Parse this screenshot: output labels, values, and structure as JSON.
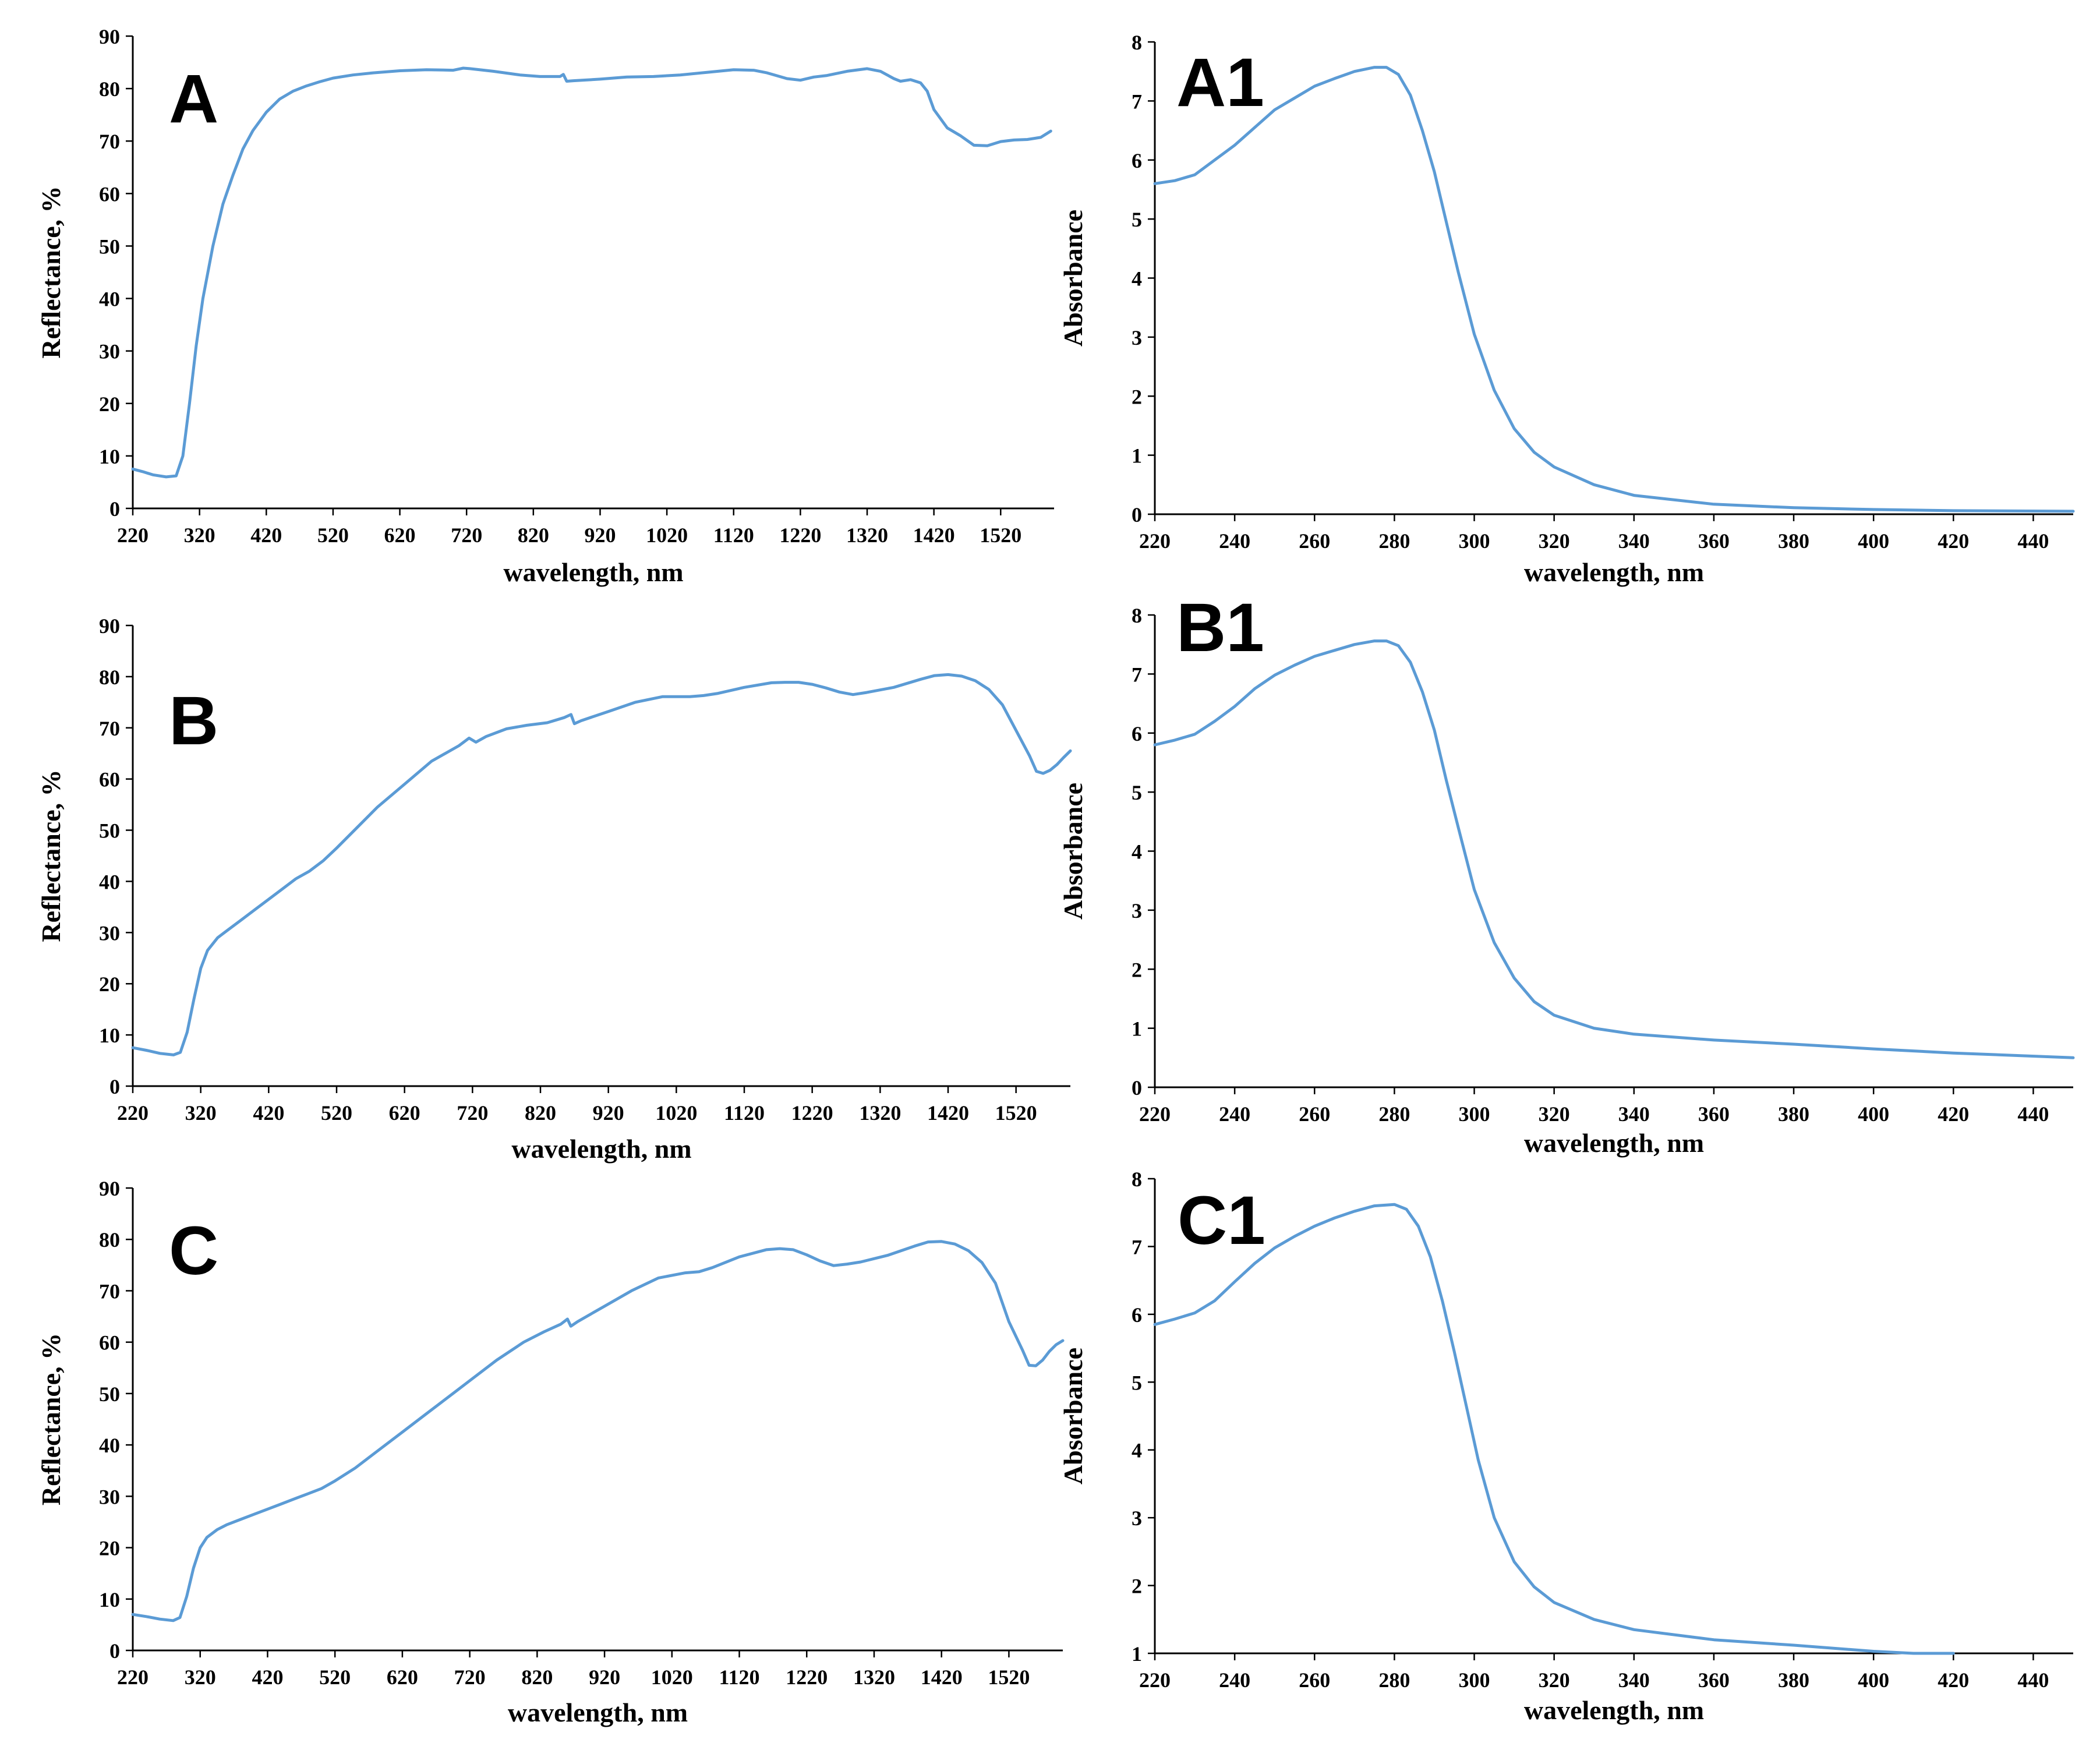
{
  "figure": {
    "line_color": "#5b9bd5"
  },
  "chart_data": [
    {
      "panel": "A",
      "type": "line",
      "xlabel": "wavelength, nm",
      "ylabel": "Reflectance, %",
      "xlim": [
        220,
        1600
      ],
      "ylim": [
        0,
        90
      ],
      "xticks": [
        220,
        320,
        420,
        520,
        620,
        720,
        820,
        920,
        1020,
        1120,
        1220,
        1320,
        1420,
        1520
      ],
      "yticks": [
        0,
        10,
        20,
        30,
        40,
        50,
        60,
        70,
        80,
        90
      ],
      "grid": false,
      "series": [
        {
          "x": [
            220,
            235,
            250,
            270,
            285,
            295,
            305,
            315,
            325,
            340,
            355,
            370,
            385,
            400,
            420,
            440,
            460,
            480,
            500,
            520,
            550,
            580,
            620,
            660,
            700,
            715,
            725,
            760,
            800,
            830,
            860,
            865,
            870,
            880,
            920,
            960,
            1000,
            1040,
            1080,
            1120,
            1150,
            1170,
            1200,
            1220,
            1240,
            1260,
            1290,
            1320,
            1340,
            1360,
            1370,
            1385,
            1400,
            1410,
            1420,
            1440,
            1460,
            1480,
            1500,
            1520,
            1540,
            1560,
            1580,
            1595
          ],
          "y": [
            7.5,
            7,
            6.4,
            6,
            6.2,
            10,
            20,
            31,
            40,
            50,
            58,
            63.5,
            68.5,
            72,
            75.5,
            78,
            79.5,
            80.5,
            81.3,
            82,
            82.6,
            83,
            83.4,
            83.6,
            83.5,
            83.9,
            83.8,
            83.3,
            82.6,
            82.3,
            82.3,
            82.7,
            81.4,
            81.5,
            81.8,
            82.2,
            82.3,
            82.6,
            83.1,
            83.6,
            83.5,
            83,
            81.9,
            81.6,
            82.2,
            82.5,
            83.3,
            83.8,
            83.3,
            81.9,
            81.4,
            81.7,
            81.1,
            79.5,
            76,
            72.5,
            71,
            69.2,
            69.1,
            69.9,
            70.2,
            70.3,
            70.7,
            71.9
          ]
        }
      ]
    },
    {
      "panel": "A1",
      "type": "line",
      "xlabel": "wavelength, nm",
      "ylabel": "Absorbance",
      "xlim": [
        220,
        450
      ],
      "ylim": [
        0,
        8
      ],
      "xticks": [
        220,
        240,
        260,
        280,
        300,
        320,
        340,
        360,
        380,
        400,
        420,
        440
      ],
      "yticks": [
        0,
        1,
        2,
        3,
        4,
        5,
        6,
        7,
        8
      ],
      "grid": false,
      "series": [
        {
          "x": [
            220,
            225,
            230,
            235,
            240,
            245,
            250,
            255,
            260,
            265,
            270,
            275,
            278,
            281,
            284,
            287,
            290,
            293,
            296,
            300,
            305,
            310,
            315,
            320,
            330,
            340,
            360,
            380,
            400,
            420,
            450
          ],
          "y": [
            5.6,
            5.65,
            5.75,
            6.0,
            6.25,
            6.55,
            6.85,
            7.05,
            7.25,
            7.38,
            7.5,
            7.57,
            7.57,
            7.45,
            7.1,
            6.5,
            5.8,
            4.95,
            4.1,
            3.05,
            2.1,
            1.45,
            1.05,
            0.8,
            0.5,
            0.32,
            0.17,
            0.11,
            0.08,
            0.06,
            0.05
          ]
        }
      ]
    },
    {
      "panel": "B",
      "type": "line",
      "xlabel": "wavelength, nm",
      "ylabel": "Reflectance, %",
      "xlim": [
        220,
        1600
      ],
      "ylim": [
        0,
        90
      ],
      "xticks": [
        220,
        320,
        420,
        520,
        620,
        720,
        820,
        920,
        1020,
        1120,
        1220,
        1320,
        1420,
        1520
      ],
      "yticks": [
        0,
        10,
        20,
        30,
        40,
        50,
        60,
        70,
        80,
        90
      ],
      "grid": false,
      "series": [
        {
          "x": [
            220,
            240,
            260,
            280,
            290,
            300,
            310,
            320,
            330,
            345,
            360,
            380,
            400,
            420,
            440,
            460,
            480,
            500,
            520,
            550,
            580,
            620,
            660,
            700,
            715,
            725,
            740,
            770,
            800,
            830,
            855,
            865,
            870,
            880,
            920,
            960,
            1000,
            1040,
            1060,
            1080,
            1120,
            1160,
            1180,
            1200,
            1220,
            1240,
            1260,
            1280,
            1300,
            1340,
            1380,
            1400,
            1420,
            1440,
            1460,
            1480,
            1500,
            1520,
            1540,
            1550,
            1560,
            1570,
            1580,
            1590,
            1600
          ],
          "y": [
            7.5,
            7,
            6.4,
            6.1,
            6.6,
            10.5,
            17,
            23,
            26.5,
            29,
            30.5,
            32.5,
            34.5,
            36.5,
            38.5,
            40.5,
            42,
            44,
            46.5,
            50.5,
            54.5,
            59,
            63.5,
            66.5,
            68,
            67.2,
            68.3,
            69.8,
            70.5,
            71,
            72,
            72.6,
            70.8,
            71.4,
            73.2,
            75,
            76.1,
            76.1,
            76.3,
            76.7,
            77.9,
            78.8,
            78.9,
            78.9,
            78.5,
            77.8,
            77,
            76.5,
            76.9,
            77.9,
            79.5,
            80.2,
            80.4,
            80.1,
            79.2,
            77.5,
            74.5,
            69.5,
            64.5,
            61.5,
            61.1,
            61.7,
            62.8,
            64.2,
            65.5
          ]
        }
      ]
    },
    {
      "panel": "B1",
      "type": "line",
      "xlabel": "wavelength, nm",
      "ylabel": "Absorbance",
      "xlim": [
        220,
        450
      ],
      "ylim": [
        0,
        8
      ],
      "xticks": [
        220,
        240,
        260,
        280,
        300,
        320,
        340,
        360,
        380,
        400,
        420,
        440
      ],
      "yticks": [
        0,
        1,
        2,
        3,
        4,
        5,
        6,
        7,
        8
      ],
      "grid": false,
      "series": [
        {
          "x": [
            220,
            225,
            230,
            235,
            240,
            245,
            250,
            255,
            260,
            265,
            270,
            275,
            278,
            281,
            284,
            287,
            290,
            293,
            296,
            300,
            305,
            310,
            315,
            320,
            330,
            340,
            360,
            380,
            400,
            420,
            450
          ],
          "y": [
            5.8,
            5.88,
            5.98,
            6.2,
            6.45,
            6.75,
            6.98,
            7.15,
            7.3,
            7.4,
            7.5,
            7.56,
            7.56,
            7.48,
            7.2,
            6.7,
            6.05,
            5.2,
            4.4,
            3.35,
            2.45,
            1.85,
            1.45,
            1.22,
            1.0,
            0.9,
            0.8,
            0.73,
            0.65,
            0.58,
            0.5
          ]
        }
      ]
    },
    {
      "panel": "C",
      "type": "line",
      "xlabel": "wavelength, nm",
      "ylabel": "Reflectance, %",
      "xlim": [
        220,
        1600
      ],
      "ylim": [
        0,
        90
      ],
      "xticks": [
        220,
        320,
        420,
        520,
        620,
        720,
        820,
        920,
        1020,
        1120,
        1220,
        1320,
        1420,
        1520
      ],
      "yticks": [
        0,
        10,
        20,
        30,
        40,
        50,
        60,
        70,
        80,
        90
      ],
      "grid": false,
      "series": [
        {
          "x": [
            220,
            240,
            260,
            280,
            290,
            300,
            310,
            320,
            330,
            345,
            360,
            380,
            400,
            420,
            440,
            460,
            480,
            500,
            520,
            550,
            580,
            620,
            660,
            700,
            720,
            760,
            800,
            830,
            855,
            865,
            870,
            880,
            920,
            960,
            1000,
            1040,
            1060,
            1080,
            1120,
            1160,
            1180,
            1200,
            1220,
            1240,
            1260,
            1280,
            1300,
            1340,
            1380,
            1400,
            1420,
            1440,
            1460,
            1480,
            1500,
            1520,
            1540,
            1550,
            1560,
            1570,
            1580,
            1590,
            1600
          ],
          "y": [
            7,
            6.6,
            6.1,
            5.8,
            6.4,
            10.5,
            16,
            20,
            22,
            23.5,
            24.5,
            25.5,
            26.5,
            27.5,
            28.5,
            29.5,
            30.5,
            31.5,
            33,
            35.5,
            38.5,
            42.5,
            46.5,
            50.5,
            52.5,
            56.5,
            60,
            62,
            63.5,
            64.5,
            63.1,
            64,
            67,
            70,
            72.5,
            73.5,
            73.7,
            74.5,
            76.6,
            78,
            78.2,
            78,
            77,
            75.8,
            74.9,
            75.2,
            75.6,
            76.9,
            78.7,
            79.5,
            79.6,
            79.1,
            77.8,
            75.5,
            71.5,
            64,
            58.5,
            55.5,
            55.4,
            56.5,
            58.2,
            59.5,
            60.3
          ]
        }
      ]
    },
    {
      "panel": "C1",
      "type": "line",
      "xlabel": "wavelength, nm",
      "ylabel": "Absorbance",
      "xlim": [
        220,
        450
      ],
      "ylim": [
        1,
        8
      ],
      "xticks": [
        220,
        240,
        260,
        280,
        300,
        320,
        340,
        360,
        380,
        400,
        420,
        440
      ],
      "yticks": [
        1,
        2,
        3,
        4,
        5,
        6,
        7,
        8
      ],
      "grid": false,
      "series": [
        {
          "x": [
            220,
            225,
            230,
            235,
            240,
            245,
            250,
            255,
            260,
            265,
            270,
            275,
            280,
            283,
            286,
            289,
            292,
            295,
            298,
            301,
            305,
            310,
            315,
            320,
            330,
            340,
            360,
            380,
            400,
            410,
            420
          ],
          "y": [
            5.85,
            5.93,
            6.02,
            6.2,
            6.48,
            6.75,
            6.98,
            7.15,
            7.3,
            7.42,
            7.52,
            7.6,
            7.62,
            7.55,
            7.3,
            6.85,
            6.2,
            5.45,
            4.65,
            3.85,
            3.0,
            2.35,
            1.98,
            1.75,
            1.5,
            1.35,
            1.2,
            1.12,
            1.03,
            1.0,
            1.0
          ]
        }
      ]
    }
  ]
}
